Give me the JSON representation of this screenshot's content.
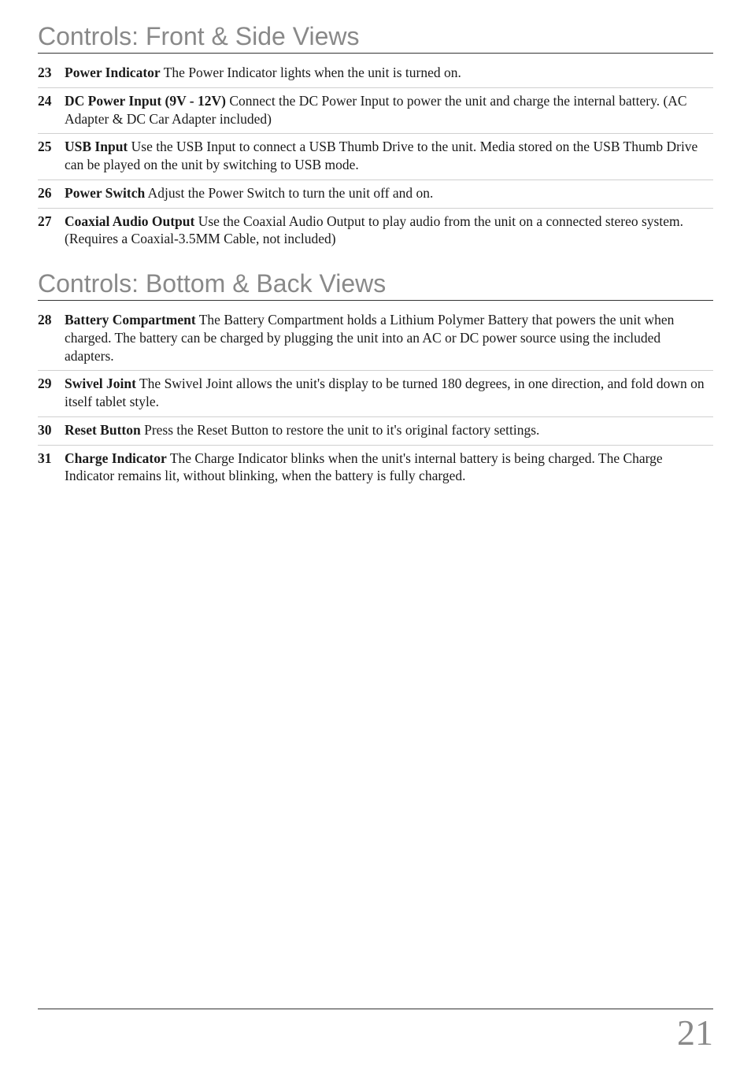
{
  "colors": {
    "heading": "#898989",
    "body_text": "#1a1a1a",
    "rule_dark": "#333333",
    "rule_light": "#d0d0d0",
    "page_number": "#898989",
    "background": "#ffffff"
  },
  "typography": {
    "heading_font": "Arial",
    "heading_size_pt": 24,
    "body_font": "Times New Roman",
    "body_size_pt": 13,
    "page_number_size_pt": 34
  },
  "sections": [
    {
      "title": "Controls: Front & Side Views",
      "items": [
        {
          "num": "23",
          "term": "Power Indicator",
          "text": "  The Power Indicator lights when the unit is turned on."
        },
        {
          "num": "24",
          "term": "DC Power Input (9V - 12V)",
          "text": "  Connect the DC Power Input to power the unit and charge the internal battery.  (AC Adapter & DC Car Adapter included)"
        },
        {
          "num": "25",
          "term": "USB Input",
          "text": "  Use the USB Input to connect a USB Thumb Drive to the unit.  Media stored on the USB Thumb Drive can be played on the unit by switching to USB mode."
        },
        {
          "num": "26",
          "term": "Power Switch",
          "text": "  Adjust the Power Switch to turn the unit off and on."
        },
        {
          "num": "27",
          "term": "Coaxial Audio Output",
          "text": "  Use the Coaxial Audio Output to play audio from the unit on a connected stereo system. (Requires a Coaxial-3.5MM Cable, not included)"
        }
      ]
    },
    {
      "title": "Controls: Bottom & Back Views",
      "items": [
        {
          "num": "28",
          "term": "Battery Compartment",
          "text": "  The Battery Compartment holds a Lithium Polymer Battery that powers the unit when charged.  The battery can be charged by plugging the unit into an AC or DC power source using the included adapters."
        },
        {
          "num": "29",
          "term": "Swivel Joint",
          "text": "  The Swivel Joint allows the unit's display to be turned 180 degrees, in one direction, and fold down on itself tablet style."
        },
        {
          "num": "30",
          "term": "Reset Button",
          "text": "  Press the Reset Button to restore the unit to it's original factory settings."
        },
        {
          "num": "31",
          "term": "Charge Indicator",
          "text": "  The Charge Indicator blinks when the unit's internal battery is being charged.  The Charge Indicator remains lit, without blinking, when the battery is fully charged."
        }
      ]
    }
  ],
  "page_number": "21"
}
